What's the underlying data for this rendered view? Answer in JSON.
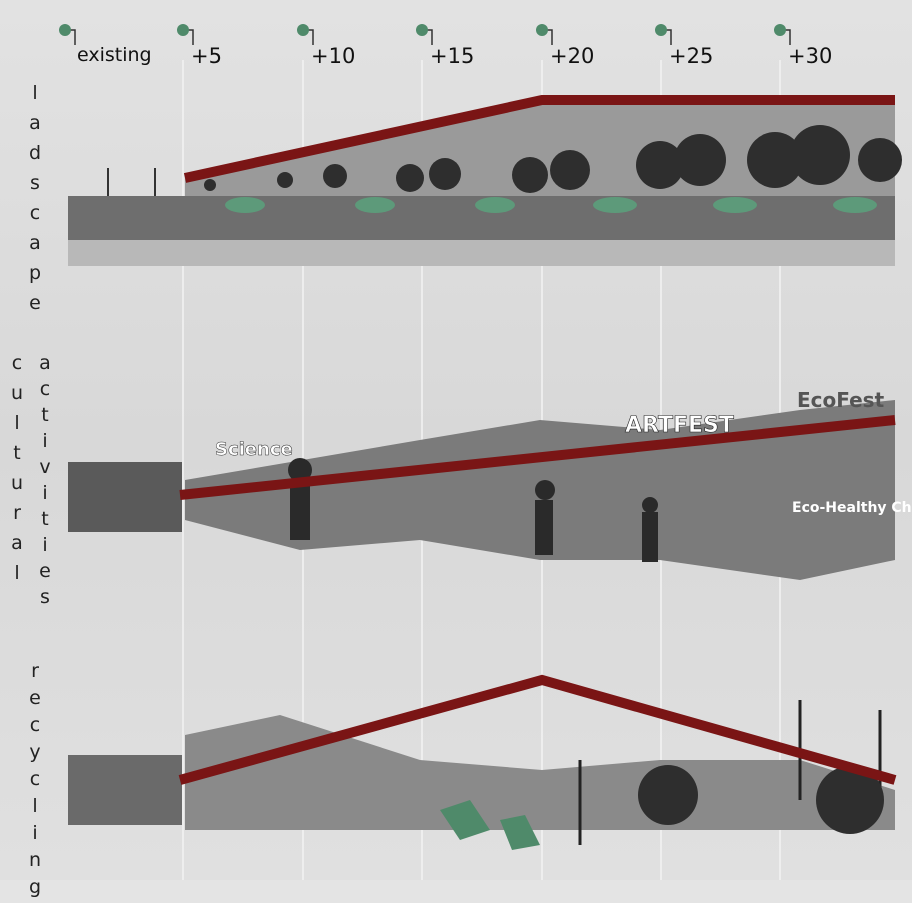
{
  "timeline": [
    "existing",
    "+5",
    "+10",
    "+15",
    "+20",
    "+25",
    "+30"
  ],
  "rows": [
    {
      "label": "ladscape"
    },
    {
      "label": "cultural",
      "label2": "activities"
    },
    {
      "label": "recycling"
    }
  ],
  "image_texts": {
    "science": "Science",
    "artfest": "ARTFEST",
    "ecofest": "EcoFest",
    "childcare": "Eco-Healthy Child Care"
  }
}
